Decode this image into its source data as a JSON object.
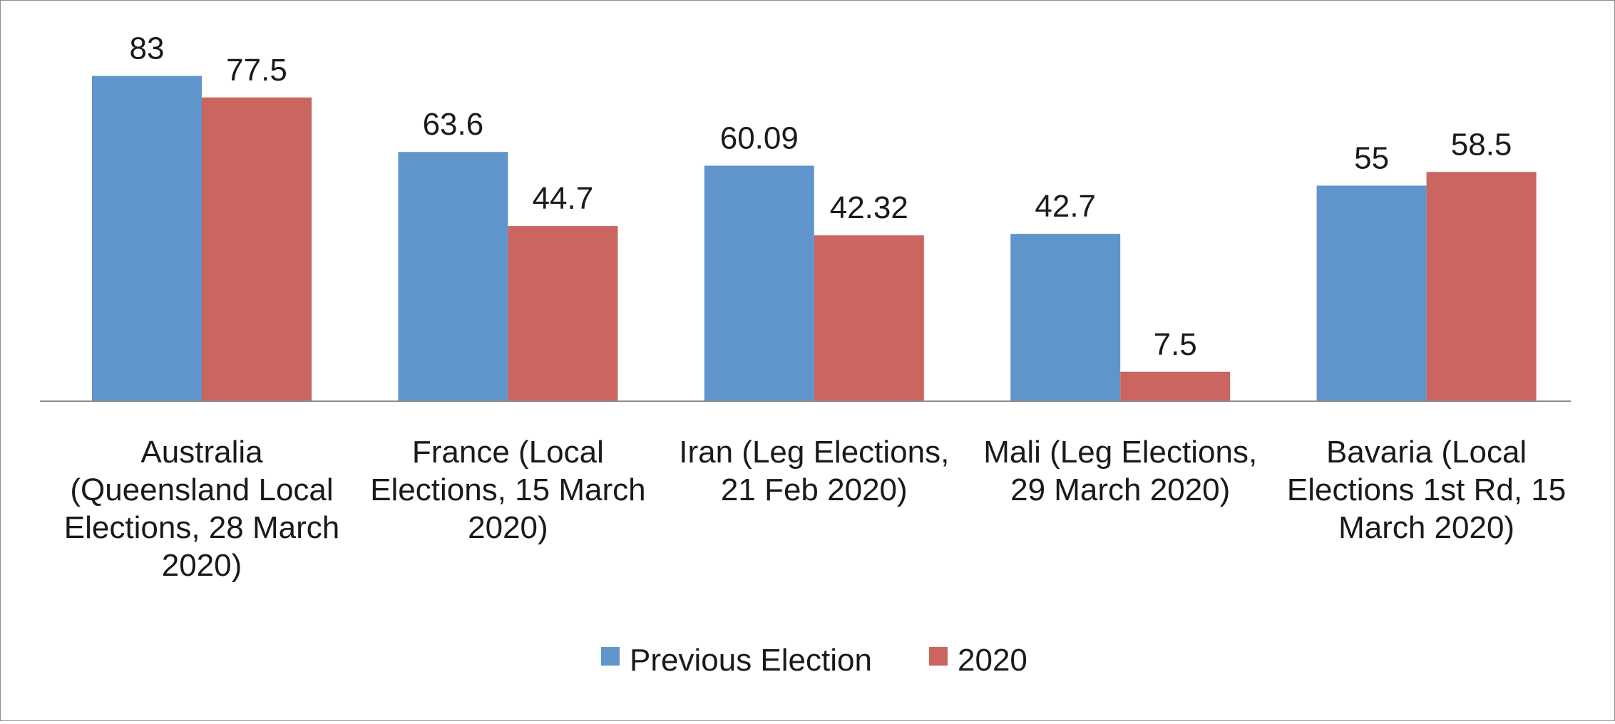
{
  "chart_data": {
    "type": "bar",
    "title": "",
    "xlabel": "",
    "ylabel": "",
    "ylim": [
      0,
      90
    ],
    "grid": false,
    "legend_position": "bottom",
    "categories": [
      [
        "Australia",
        "(Queensland Local",
        "Elections, 28 March",
        "2020)"
      ],
      [
        "France (Local",
        "Elections, 15 March",
        "2020)"
      ],
      [
        "Iran (Leg Elections,",
        "21 Feb 2020)"
      ],
      [
        "Mali (Leg Elections,",
        "29 March 2020)"
      ],
      [
        "Bavaria (Local",
        "Elections 1st Rd, 15",
        "March 2020)"
      ]
    ],
    "series": [
      {
        "name": "Previous Election",
        "color": "#6095CC",
        "values": [
          83,
          63.6,
          60.09,
          42.7,
          55
        ],
        "labels": [
          "83",
          "63.6",
          "60.09",
          "42.7",
          "55"
        ]
      },
      {
        "name": "2020",
        "color": "#CA6560",
        "values": [
          77.5,
          44.7,
          42.32,
          7.5,
          58.5
        ],
        "labels": [
          "77.5",
          "44.7",
          "42.32",
          "7.5",
          "58.5"
        ]
      }
    ]
  }
}
